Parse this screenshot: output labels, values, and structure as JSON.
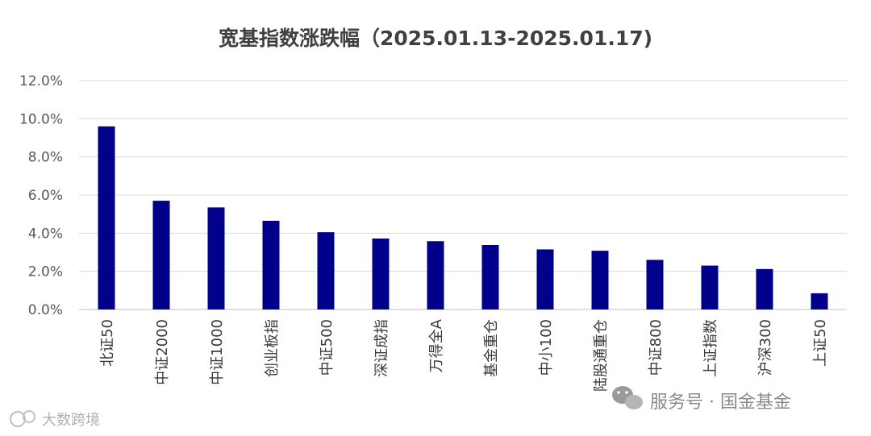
{
  "chart_data": {
    "type": "bar",
    "title": "宽基指数涨跌幅（2025.01.13-2025.01.17)",
    "categories": [
      "北证50",
      "中证2000",
      "中证1000",
      "创业板指",
      "中证500",
      "深证成指",
      "万得全A",
      "基金重仓",
      "中小100",
      "陆股通重仓",
      "中证800",
      "上证指数",
      "沪深300",
      "上证50"
    ],
    "values": [
      9.6,
      5.7,
      5.35,
      4.65,
      4.05,
      3.72,
      3.58,
      3.38,
      3.15,
      3.08,
      2.6,
      2.3,
      2.12,
      0.85
    ],
    "y_ticks": [
      "0.0%",
      "2.0%",
      "4.0%",
      "6.0%",
      "8.0%",
      "10.0%",
      "12.0%"
    ],
    "ylim": [
      0,
      12
    ],
    "grid": true,
    "bar_color": "#00008B"
  },
  "watermark": {
    "left_text": "大数跨境",
    "right_text": "服务号 · 国金基金"
  }
}
